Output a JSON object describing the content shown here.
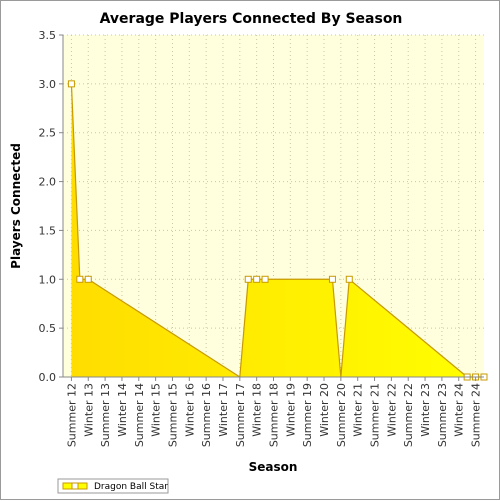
{
  "chart_data": {
    "type": "area",
    "title": "Average Players Connected By Season",
    "xlabel": "Season",
    "ylabel": "Players Connected",
    "ylim": [
      0,
      3.5
    ],
    "yticks": [
      "0.0",
      "0.5",
      "1.0",
      "1.5",
      "2.0",
      "2.5",
      "3.0",
      "3.5"
    ],
    "categories": [
      "Summer 12",
      "Winter 13",
      "Summer 13",
      "Winter 14",
      "Summer 14",
      "Winter 15",
      "Summer 15",
      "Winter 16",
      "Summer 16",
      "Winter 17",
      "Summer 17",
      "Winter 18",
      "Summer 18",
      "Winter 19",
      "Summer 19",
      "Winter 20",
      "Summer 20",
      "Winter 21",
      "Summer 21",
      "Winter 22",
      "Summer 22",
      "Winter 23",
      "Summer 23",
      "Winter 24",
      "Summer 24"
    ],
    "x": [
      0,
      0.5,
      1,
      10,
      10.5,
      11,
      11.5,
      15.5,
      16,
      16.5,
      23.5,
      24,
      24.5
    ],
    "series": [
      {
        "name": "Dragon Ball Star",
        "values": [
          3.0,
          1.0,
          1.0,
          0,
          1.0,
          1.0,
          1.0,
          1.0,
          0,
          1.0,
          0,
          0,
          0
        ],
        "markers": [
          true,
          true,
          true,
          false,
          true,
          true,
          true,
          true,
          false,
          true,
          true,
          true,
          true
        ],
        "color": "#ffff00",
        "line_color": "#c89a00"
      }
    ],
    "plot_background": "#ffffdd",
    "grid": true,
    "legend": "bottom-left"
  }
}
